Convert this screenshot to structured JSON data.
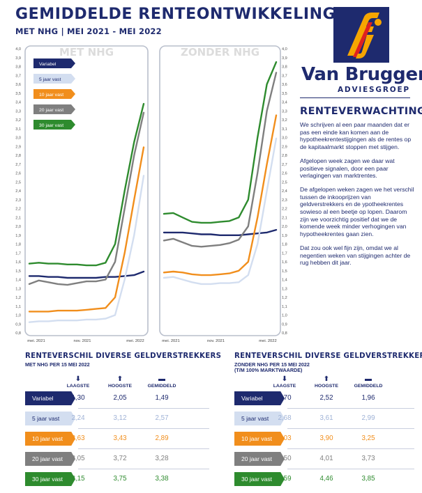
{
  "header": {
    "title": "GEMIDDELDE RENTEONTWIKKELING",
    "subtitle": "MET NHG | MEI 2021 - MEI 2022"
  },
  "logo": {
    "name": "Van Bruggen",
    "sub": "ADVIESGROEP"
  },
  "renteverwachting": {
    "title": "RENTEVERWACHTING",
    "paragraphs": [
      "We schrijven al een paar maanden dat er pas een einde kan komen aan de hypotheekrentestijgingen als de rentes op de kapitaalmarkt stoppen met stijgen.",
      "Afgelopen week zagen we daar wat positieve signalen, door een paar verlagingen van marktrentes.",
      "De afgelopen weken zagen we het verschil tussen de inkooprijzen van geldverstrekkers en de ypotheekrentes sowieso al een beetje op lopen. Daarom zijn we voorzichtig positief dat we de komende week minder verhogingen van hypotheekrentes gaan zien.",
      "Dat zou ook wel fijn zijn, omdat we al negentien weken van stijgingen achter de rug hebben dit jaar."
    ]
  },
  "colors": {
    "Variabel": "#1e2a6e",
    "5 jaar vast": "#d3def0",
    "10 jaar vast": "#f18e1c",
    "20 jaar vast": "#7f7f7f",
    "30 jaar vast": "#2e8b2e"
  },
  "legend": [
    "Variabel",
    "5 jaar vast",
    "10 jaar vast",
    "20 jaar vast",
    "30 jaar vast"
  ],
  "chart_data": [
    {
      "type": "line",
      "title": "MET NHG",
      "xlabel": "",
      "ylabel": "",
      "ylim": [
        0.8,
        4.0
      ],
      "yticks": [
        "4,0",
        "3,9",
        "3,8",
        "3,7",
        "3,6",
        "3,5",
        "3,4",
        "3,3",
        "3,2",
        "3,1",
        "3,0",
        "2,9",
        "2,8",
        "2,7",
        "2,6",
        "2,5",
        "2,4",
        "2,3",
        "2,2",
        "2,1",
        "2,0",
        "1,9",
        "1,8",
        "1,7",
        "1,6",
        "1,5",
        "1,4",
        "1,3",
        "1,2",
        "1,1",
        "1,0",
        "0,9",
        "0,8"
      ],
      "x_tick_labels": [
        "mei. 2021",
        "nov. 2021",
        "mei. 2022"
      ],
      "x": [
        "mei. 2021",
        "jun. 2021",
        "jul. 2021",
        "aug. 2021",
        "sep. 2021",
        "okt. 2021",
        "nov. 2021",
        "dec. 2021",
        "jan. 2022",
        "feb. 2022",
        "mrt. 2022",
        "apr. 2022",
        "mei. 2022"
      ],
      "series": [
        {
          "name": "Variabel",
          "values": [
            1.44,
            1.44,
            1.43,
            1.43,
            1.42,
            1.42,
            1.42,
            1.42,
            1.43,
            1.43,
            1.44,
            1.45,
            1.49
          ]
        },
        {
          "name": "5 jaar vast",
          "values": [
            0.92,
            0.93,
            0.93,
            0.94,
            0.94,
            0.94,
            0.95,
            0.95,
            0.96,
            1.0,
            1.4,
            1.9,
            2.57
          ]
        },
        {
          "name": "10 jaar vast",
          "values": [
            1.04,
            1.04,
            1.04,
            1.05,
            1.05,
            1.05,
            1.06,
            1.07,
            1.08,
            1.2,
            1.7,
            2.3,
            2.89
          ]
        },
        {
          "name": "20 jaar vast",
          "values": [
            1.35,
            1.39,
            1.37,
            1.35,
            1.34,
            1.36,
            1.38,
            1.38,
            1.4,
            1.6,
            2.2,
            2.8,
            3.28
          ]
        },
        {
          "name": "30 jaar vast",
          "values": [
            1.58,
            1.59,
            1.58,
            1.58,
            1.57,
            1.57,
            1.56,
            1.56,
            1.59,
            1.8,
            2.4,
            2.95,
            3.38
          ]
        }
      ]
    },
    {
      "type": "line",
      "title": "ZONDER NHG",
      "xlabel": "",
      "ylabel": "",
      "ylim": [
        0.8,
        4.0
      ],
      "yticks": [
        "4,0",
        "3,9",
        "3,8",
        "3,7",
        "3,6",
        "3,5",
        "3,4",
        "3,3",
        "3,2",
        "3,1",
        "3,0",
        "2,9",
        "2,8",
        "2,7",
        "2,6",
        "2,5",
        "2,4",
        "2,3",
        "2,2",
        "2,1",
        "2,0",
        "1,9",
        "1,8",
        "1,7",
        "1,6",
        "1,5",
        "1,4",
        "1,3",
        "1,2",
        "1,1",
        "1,0",
        "0,9",
        "0,8"
      ],
      "x_tick_labels": [
        "mei. 2021",
        "nov. 2021",
        "mei. 2022"
      ],
      "x": [
        "mei. 2021",
        "jun. 2021",
        "jul. 2021",
        "aug. 2021",
        "sep. 2021",
        "okt. 2021",
        "nov. 2021",
        "dec. 2021",
        "jan. 2022",
        "feb. 2022",
        "mrt. 2022",
        "apr. 2022",
        "mei. 2022"
      ],
      "series": [
        {
          "name": "Variabel",
          "values": [
            1.93,
            1.93,
            1.93,
            1.92,
            1.91,
            1.91,
            1.9,
            1.9,
            1.9,
            1.91,
            1.92,
            1.93,
            1.96
          ]
        },
        {
          "name": "5 jaar vast",
          "values": [
            1.42,
            1.43,
            1.4,
            1.37,
            1.35,
            1.35,
            1.36,
            1.36,
            1.37,
            1.45,
            1.8,
            2.4,
            2.99
          ]
        },
        {
          "name": "10 jaar vast",
          "values": [
            1.48,
            1.49,
            1.48,
            1.46,
            1.45,
            1.45,
            1.46,
            1.47,
            1.5,
            1.6,
            2.1,
            2.7,
            3.25
          ]
        },
        {
          "name": "20 jaar vast",
          "values": [
            1.84,
            1.86,
            1.82,
            1.78,
            1.77,
            1.78,
            1.79,
            1.81,
            1.85,
            2.0,
            2.6,
            3.3,
            3.73
          ]
        },
        {
          "name": "30 jaar vast",
          "values": [
            2.14,
            2.15,
            2.1,
            2.05,
            2.04,
            2.04,
            2.05,
            2.06,
            2.1,
            2.3,
            3.0,
            3.6,
            3.85
          ]
        }
      ]
    },
    {
      "type": "table",
      "title": "RENTEVERSCHIL DIVERSE GELDVERSTREKKERS",
      "subtitle": "MET NHG PER 15 MEI 2022",
      "columns": [
        "LAAGSTE",
        "HOOGSTE",
        "GEMIDDELD"
      ],
      "rows": [
        {
          "label": "Variabel",
          "values": [
            "1,30",
            "2,05",
            "1,49"
          ]
        },
        {
          "label": "5 jaar vast",
          "values": [
            "2,24",
            "3,12",
            "2,57"
          ]
        },
        {
          "label": "10 jaar vast",
          "values": [
            "2,63",
            "3,43",
            "2,89"
          ]
        },
        {
          "label": "20 jaar vast",
          "values": [
            "3,05",
            "3,72",
            "3,28"
          ]
        },
        {
          "label": "30 jaar vast",
          "values": [
            "3,15",
            "3,75",
            "3,38"
          ]
        }
      ]
    },
    {
      "type": "table",
      "title": "RENTEVERSCHIL DIVERSE GELDVERSTREKKERS",
      "subtitle": "ZONDER NHG PER 15 MEI 2022",
      "subtitle2": "(T/M 100% MARKTWAARDE)",
      "columns": [
        "LAAGSTE",
        "HOOGSTE",
        "GEMIDDELD"
      ],
      "rows": [
        {
          "label": "Variabel",
          "values": [
            "1,70",
            "2,52",
            "1,96"
          ]
        },
        {
          "label": "5 jaar vast",
          "values": [
            "2,68",
            "3,61",
            "2,99"
          ]
        },
        {
          "label": "10 jaar vast",
          "values": [
            "3,03",
            "3,90",
            "3,25"
          ]
        },
        {
          "label": "20 jaar vast",
          "values": [
            "3,50",
            "4,01",
            "3,73"
          ]
        },
        {
          "label": "30 jaar vast",
          "values": [
            "3,59",
            "4,46",
            "3,85"
          ]
        }
      ]
    }
  ]
}
